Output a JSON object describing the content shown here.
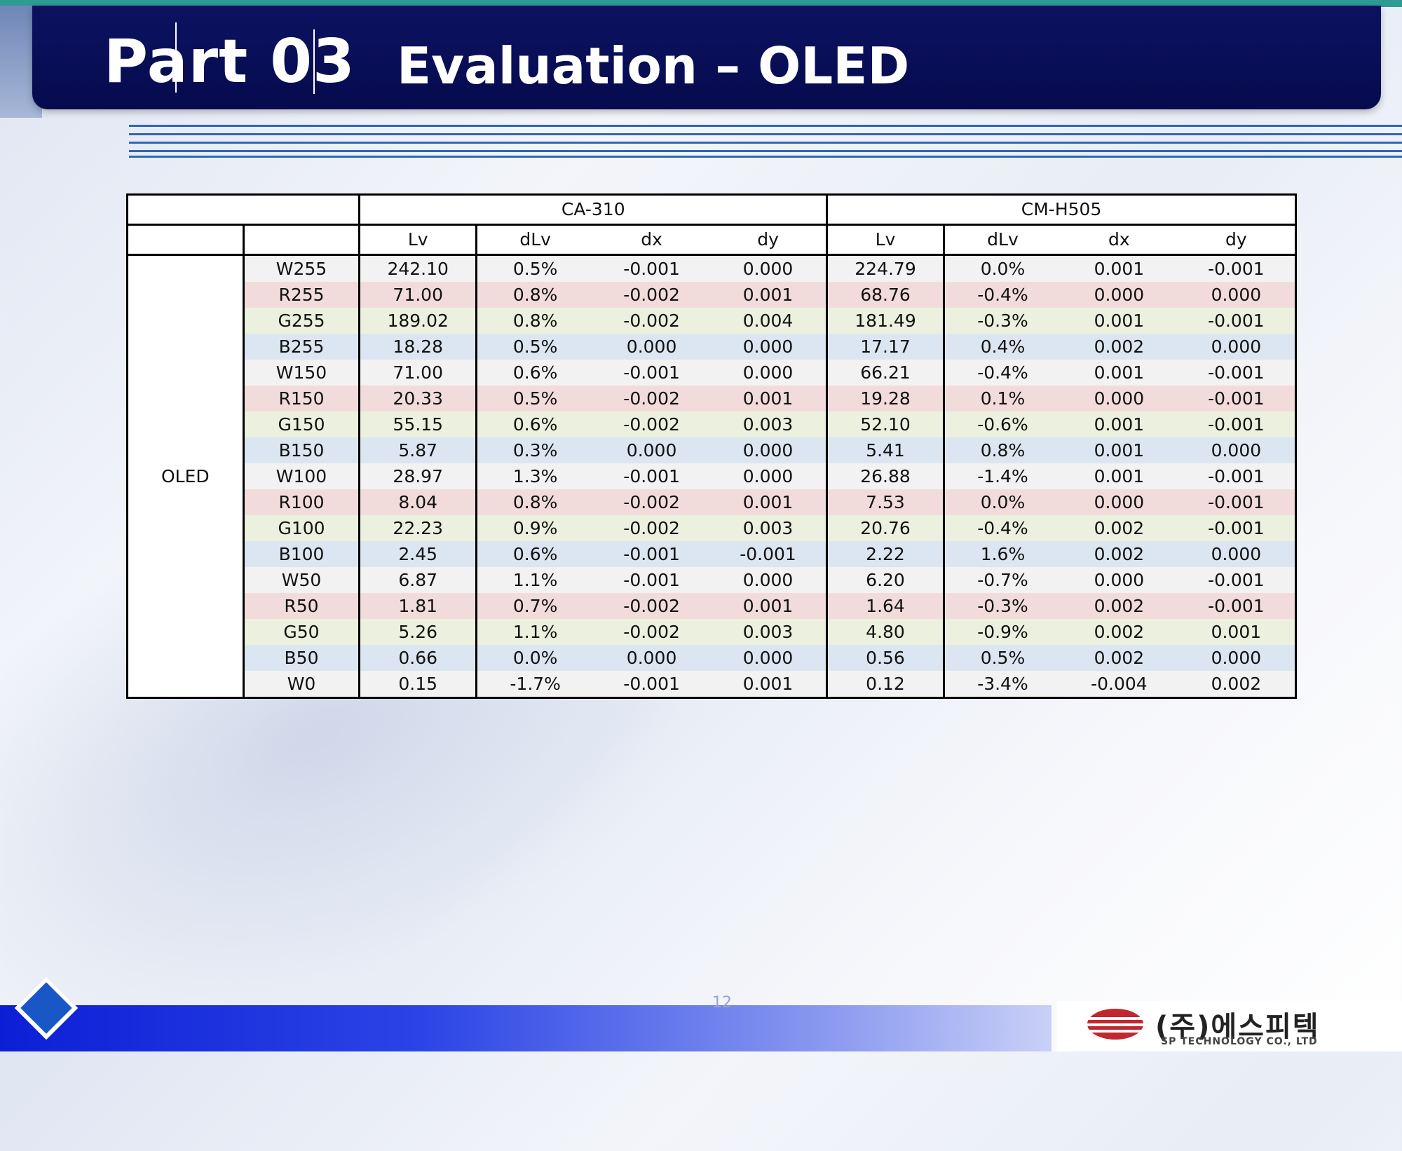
{
  "header": {
    "part_label": "Part 03",
    "title": "Evaluation – OLED"
  },
  "table": {
    "instrument_headers": [
      "CA-310",
      "CM-H505"
    ],
    "column_headers": [
      "Lv",
      "dLv",
      "dx",
      "dy",
      "Lv",
      "dLv",
      "dx",
      "dy"
    ],
    "group_label": "OLED",
    "rows": [
      {
        "label": "W255",
        "color": "w",
        "cells": [
          "242.10",
          "0.5%",
          "-0.001",
          "0.000",
          "224.79",
          "0.0%",
          "0.001",
          "-0.001"
        ]
      },
      {
        "label": "R255",
        "color": "r",
        "cells": [
          "71.00",
          "0.8%",
          "-0.002",
          "0.001",
          "68.76",
          "-0.4%",
          "0.000",
          "0.000"
        ]
      },
      {
        "label": "G255",
        "color": "g",
        "cells": [
          "189.02",
          "0.8%",
          "-0.002",
          "0.004",
          "181.49",
          "-0.3%",
          "0.001",
          "-0.001"
        ]
      },
      {
        "label": "B255",
        "color": "b",
        "cells": [
          "18.28",
          "0.5%",
          "0.000",
          "0.000",
          "17.17",
          "0.4%",
          "0.002",
          "0.000"
        ]
      },
      {
        "label": "W150",
        "color": "w",
        "cells": [
          "71.00",
          "0.6%",
          "-0.001",
          "0.000",
          "66.21",
          "-0.4%",
          "0.001",
          "-0.001"
        ]
      },
      {
        "label": "R150",
        "color": "r",
        "cells": [
          "20.33",
          "0.5%",
          "-0.002",
          "0.001",
          "19.28",
          "0.1%",
          "0.000",
          "-0.001"
        ]
      },
      {
        "label": "G150",
        "color": "g",
        "cells": [
          "55.15",
          "0.6%",
          "-0.002",
          "0.003",
          "52.10",
          "-0.6%",
          "0.001",
          "-0.001"
        ]
      },
      {
        "label": "B150",
        "color": "b",
        "cells": [
          "5.87",
          "0.3%",
          "0.000",
          "0.000",
          "5.41",
          "0.8%",
          "0.001",
          "0.000"
        ]
      },
      {
        "label": "W100",
        "color": "w",
        "cells": [
          "28.97",
          "1.3%",
          "-0.001",
          "0.000",
          "26.88",
          "-1.4%",
          "0.001",
          "-0.001"
        ]
      },
      {
        "label": "R100",
        "color": "r",
        "cells": [
          "8.04",
          "0.8%",
          "-0.002",
          "0.001",
          "7.53",
          "0.0%",
          "0.000",
          "-0.001"
        ]
      },
      {
        "label": "G100",
        "color": "g",
        "cells": [
          "22.23",
          "0.9%",
          "-0.002",
          "0.003",
          "20.76",
          "-0.4%",
          "0.002",
          "-0.001"
        ]
      },
      {
        "label": "B100",
        "color": "b",
        "cells": [
          "2.45",
          "0.6%",
          "-0.001",
          "-0.001",
          "2.22",
          "1.6%",
          "0.002",
          "0.000"
        ]
      },
      {
        "label": "W50",
        "color": "w",
        "cells": [
          "6.87",
          "1.1%",
          "-0.001",
          "0.000",
          "6.20",
          "-0.7%",
          "0.000",
          "-0.001"
        ]
      },
      {
        "label": "R50",
        "color": "r",
        "cells": [
          "1.81",
          "0.7%",
          "-0.002",
          "0.001",
          "1.64",
          "-0.3%",
          "0.002",
          "-0.001"
        ]
      },
      {
        "label": "G50",
        "color": "g",
        "cells": [
          "5.26",
          "1.1%",
          "-0.002",
          "0.003",
          "4.80",
          "-0.9%",
          "0.002",
          "0.001"
        ]
      },
      {
        "label": "B50",
        "color": "b",
        "cells": [
          "0.66",
          "0.0%",
          "0.000",
          "0.000",
          "0.56",
          "0.5%",
          "0.002",
          "0.000"
        ]
      },
      {
        "label": "W0",
        "color": "w",
        "cells": [
          "0.15",
          "-1.7%",
          "-0.001",
          "0.001",
          "0.12",
          "-3.4%",
          "-0.004",
          "0.002"
        ]
      }
    ]
  },
  "footer": {
    "page_number": "12",
    "company_name": "(주)에스피텍",
    "company_sub": "SP TECHNOLOGY CO., LTD"
  },
  "colors": {
    "header_band": "#060b4e",
    "row_w": "#f2f2f2",
    "row_r": "#f2dcdb",
    "row_g": "#ebf1de",
    "row_b": "#dce6f2",
    "footer_bar": "#0d1fd6",
    "logo_red": "#c0282d"
  }
}
